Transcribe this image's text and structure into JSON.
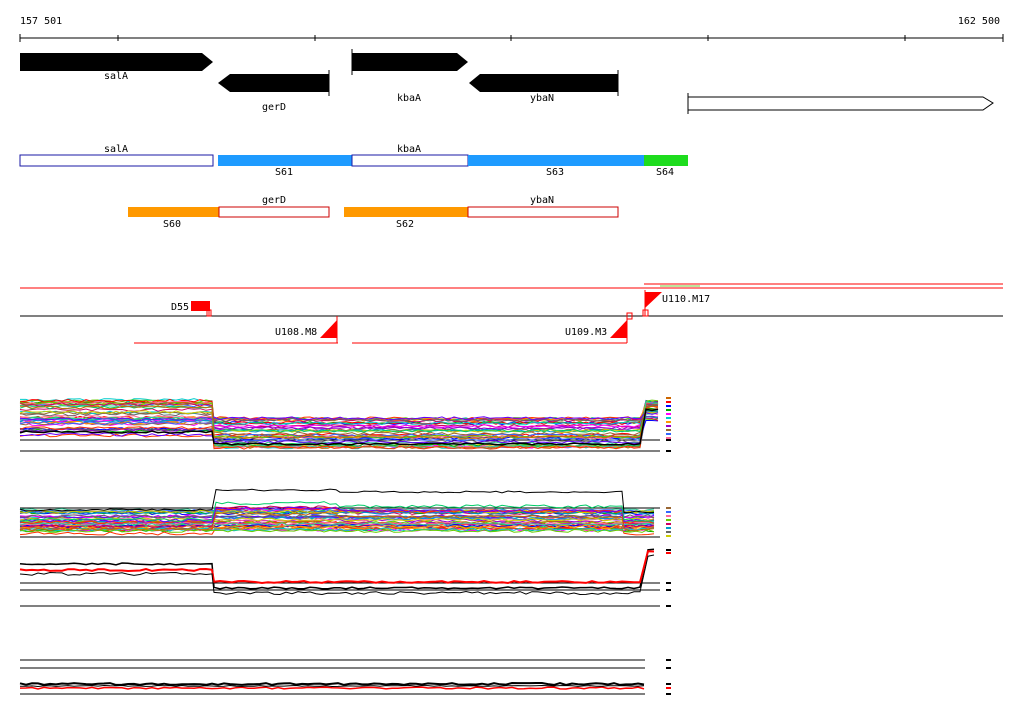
{
  "ruler": {
    "start_label": "157 501",
    "end_label": "162 500"
  },
  "genes": [
    {
      "name": "salA",
      "strand": "+"
    },
    {
      "name": "gerD",
      "strand": "-"
    },
    {
      "name": "kbaA",
      "strand": "+"
    },
    {
      "name": "ybaN",
      "strand": "-"
    },
    {
      "name": "",
      "strand": "+"
    }
  ],
  "segments_row1": [
    {
      "label": "salA",
      "type": "gene"
    },
    {
      "label": "S61",
      "type": "segment",
      "color": "#1e9bff"
    },
    {
      "label": "kbaA",
      "type": "gene"
    },
    {
      "label": "S63",
      "type": "segment",
      "color": "#1e9bff"
    },
    {
      "label": "S64",
      "type": "segment",
      "color": "#1edc1e"
    }
  ],
  "segments_row2": [
    {
      "label": "S60",
      "type": "segment",
      "color": "#ff9900"
    },
    {
      "label": "gerD",
      "type": "gene"
    },
    {
      "label": "S62",
      "type": "segment",
      "color": "#ff9900"
    },
    {
      "label": "ybaN",
      "type": "gene"
    }
  ],
  "features": [
    {
      "label": "D55"
    },
    {
      "label": "U108.M8"
    },
    {
      "label": "U109.M3"
    },
    {
      "label": "U110.M17"
    }
  ],
  "colors": {
    "gene_arrow": "#000000",
    "gene_outline": "#1a1aa6",
    "utr_outline": "#cc0000",
    "feature_red": "#ff0000"
  },
  "profile_panels": 4
}
